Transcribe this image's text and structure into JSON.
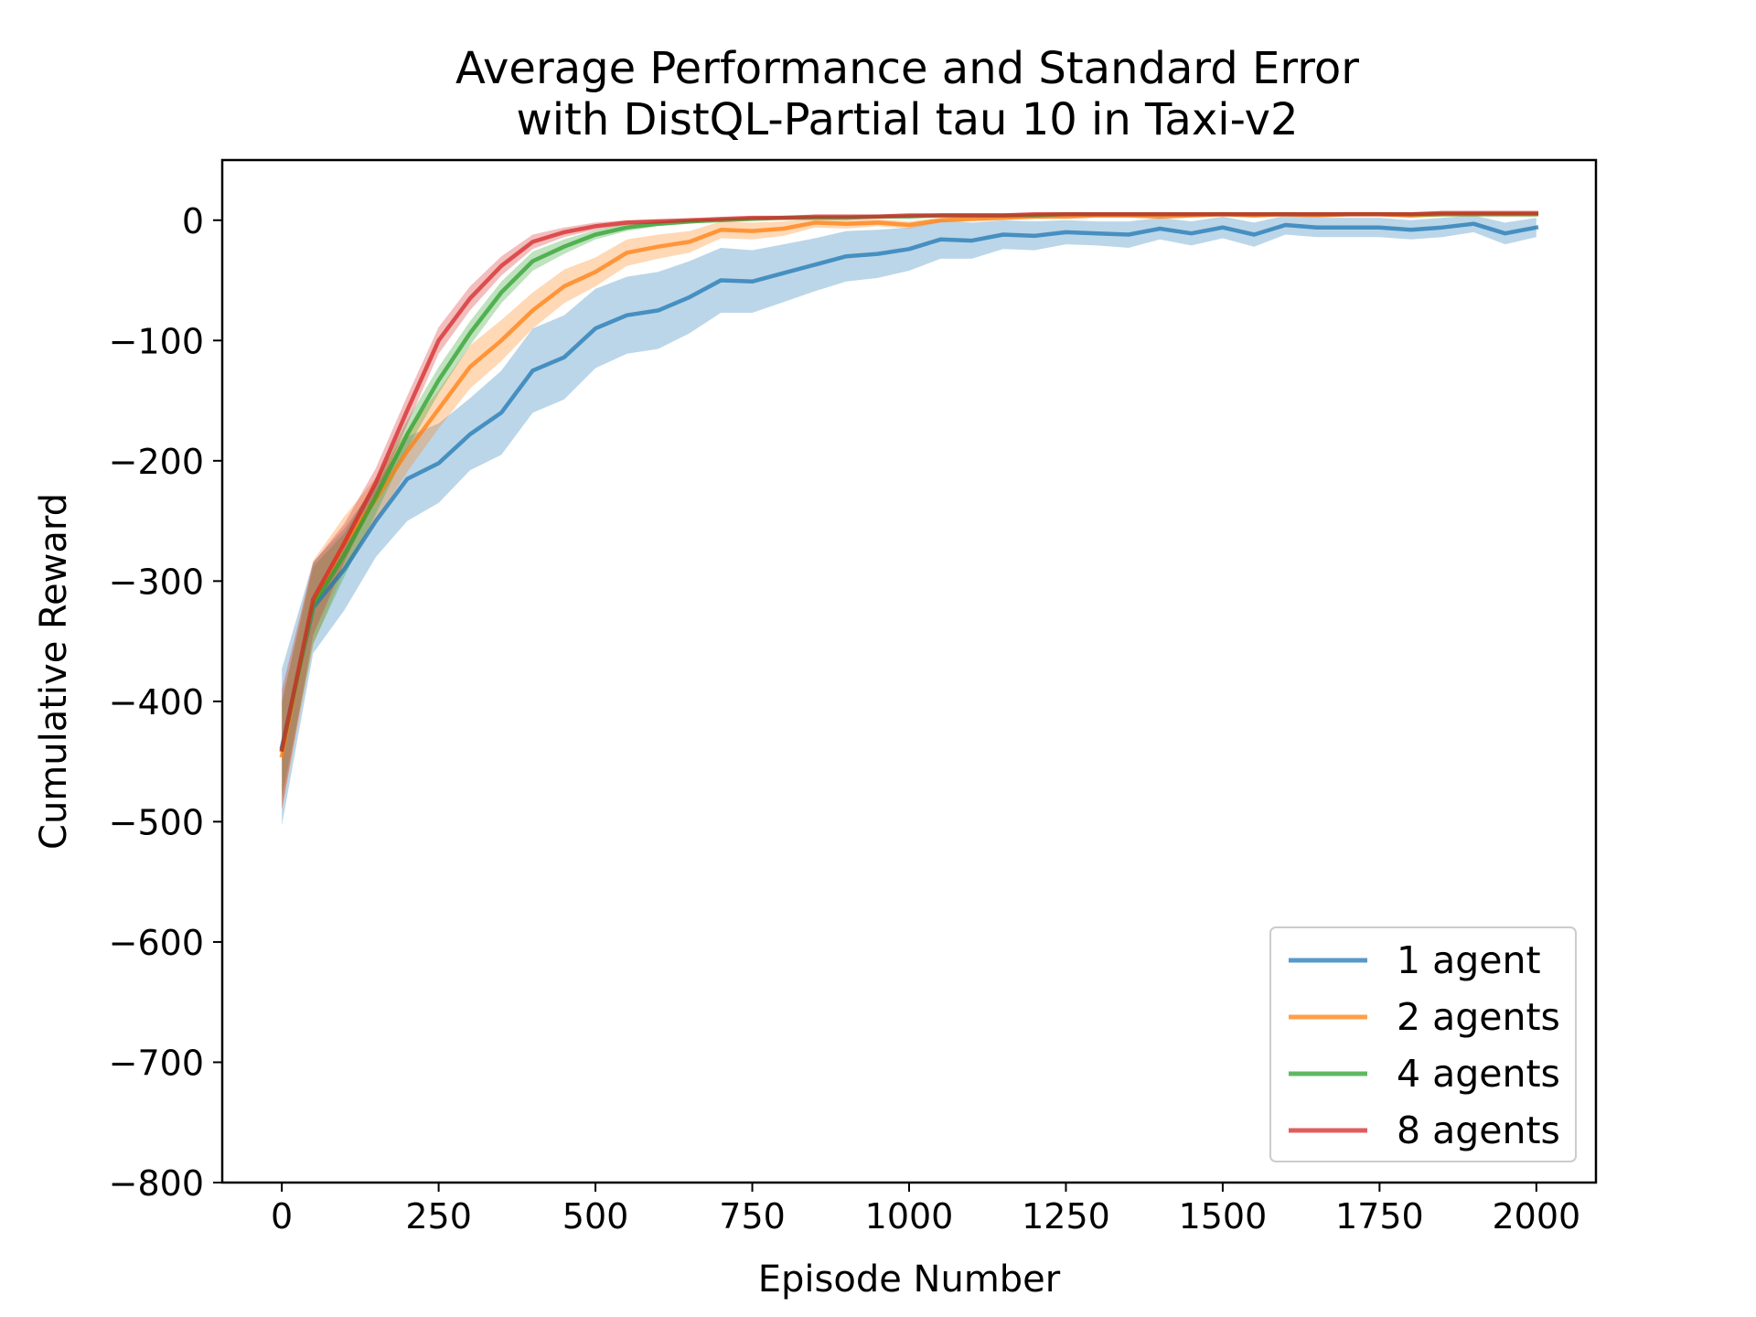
{
  "chart_data": {
    "type": "line",
    "title_line1": "Average Performance and Standard Error",
    "title_line2": "with DistQL-Partial tau 10 in Taxi-v2",
    "xlabel": "Episode Number",
    "ylabel": "Cumulative Reward",
    "xlim": [
      -95,
      2095
    ],
    "ylim": [
      -800,
      50
    ],
    "xticks": [
      0,
      250,
      500,
      750,
      1000,
      1250,
      1500,
      1750,
      2000
    ],
    "xtick_labels": [
      "0",
      "250",
      "500",
      "750",
      "1000",
      "1250",
      "1500",
      "1750",
      "2000"
    ],
    "yticks": [
      0,
      -100,
      -200,
      -300,
      -400,
      -500,
      -600,
      -700,
      -800
    ],
    "ytick_labels": [
      "0",
      "−100",
      "−200",
      "−300",
      "−400",
      "−500",
      "−600",
      "−700",
      "−800"
    ],
    "grid": false,
    "legend_position": "lower-right",
    "x": [
      0,
      50,
      100,
      150,
      200,
      250,
      300,
      350,
      400,
      450,
      500,
      550,
      600,
      650,
      700,
      750,
      800,
      850,
      900,
      950,
      1000,
      1050,
      1100,
      1150,
      1200,
      1250,
      1300,
      1350,
      1400,
      1450,
      1500,
      1550,
      1600,
      1650,
      1700,
      1750,
      1800,
      1850,
      1900,
      1950,
      2000
    ],
    "series": [
      {
        "name": "1 agent",
        "color": "#1f77b4",
        "values": [
          -438,
          -322,
          -290,
          -250,
          -215,
          -202,
          -178,
          -160,
          -125,
          -114,
          -90,
          -79,
          -75,
          -64,
          -50,
          -51,
          -44,
          -37,
          -30,
          -28,
          -24,
          -16,
          -17,
          -12,
          -13,
          -10,
          -11,
          -12,
          -7,
          -11,
          -6,
          -12,
          -4,
          -6,
          -6,
          -6,
          -8,
          -6,
          -3,
          -11,
          -6
        ],
        "err": [
          65,
          38,
          34,
          30,
          35,
          33,
          30,
          35,
          35,
          35,
          33,
          32,
          32,
          30,
          27,
          26,
          24,
          22,
          21,
          20,
          18,
          16,
          15,
          12,
          12,
          10,
          10,
          11,
          9,
          10,
          9,
          10,
          8,
          8,
          8,
          8,
          8,
          8,
          7,
          9,
          8
        ]
      },
      {
        "name": "2 agents",
        "color": "#ff7f0e",
        "values": [
          -445,
          -318,
          -268,
          -232,
          -192,
          -157,
          -122,
          -100,
          -75,
          -55,
          -43,
          -27,
          -22,
          -18,
          -8,
          -9,
          -7,
          -2,
          -3,
          -2,
          -4,
          0,
          1,
          2,
          3,
          3,
          4,
          4,
          3,
          4,
          5,
          4,
          5,
          4,
          5,
          5,
          4,
          5,
          5,
          5,
          5
        ],
        "err": [
          45,
          35,
          22,
          18,
          17,
          16,
          18,
          17,
          15,
          14,
          12,
          11,
          10,
          9,
          7,
          7,
          6,
          4,
          4,
          3,
          3,
          2,
          2,
          2,
          2,
          2,
          2,
          2,
          2,
          2,
          2,
          2,
          2,
          2,
          2,
          2,
          2,
          2,
          2,
          2,
          2
        ]
      },
      {
        "name": "4 agents",
        "color": "#2ca02c",
        "values": [
          -440,
          -320,
          -278,
          -230,
          -178,
          -133,
          -94,
          -60,
          -34,
          -22,
          -12,
          -6,
          -3,
          -1,
          0,
          1,
          2,
          2,
          2,
          3,
          3,
          4,
          4,
          4,
          4,
          5,
          5,
          5,
          5,
          5,
          5,
          5,
          5,
          5,
          5,
          5,
          5,
          5,
          5,
          5,
          5
        ],
        "err": [
          40,
          32,
          18,
          14,
          12,
          11,
          10,
          9,
          8,
          6,
          4,
          3,
          2,
          2,
          1,
          1,
          1,
          1,
          1,
          1,
          1,
          1,
          1,
          1,
          1,
          1,
          1,
          1,
          1,
          1,
          1,
          1,
          1,
          1,
          1,
          1,
          1,
          1,
          1,
          1,
          1
        ]
      },
      {
        "name": "8 agents",
        "color": "#d62728",
        "values": [
          -440,
          -315,
          -268,
          -218,
          -158,
          -100,
          -65,
          -38,
          -18,
          -10,
          -5,
          -2,
          -1,
          0,
          1,
          2,
          2,
          3,
          3,
          3,
          4,
          4,
          4,
          4,
          5,
          5,
          5,
          5,
          5,
          5,
          5,
          5,
          5,
          5,
          5,
          5,
          5,
          6,
          6,
          6,
          6
        ],
        "err": [
          50,
          30,
          16,
          12,
          12,
          11,
          10,
          8,
          6,
          4,
          3,
          2,
          2,
          1,
          1,
          1,
          1,
          1,
          1,
          1,
          1,
          1,
          1,
          1,
          1,
          1,
          1,
          1,
          1,
          1,
          1,
          1,
          1,
          1,
          1,
          1,
          1,
          1,
          1,
          1,
          1
        ]
      }
    ]
  }
}
